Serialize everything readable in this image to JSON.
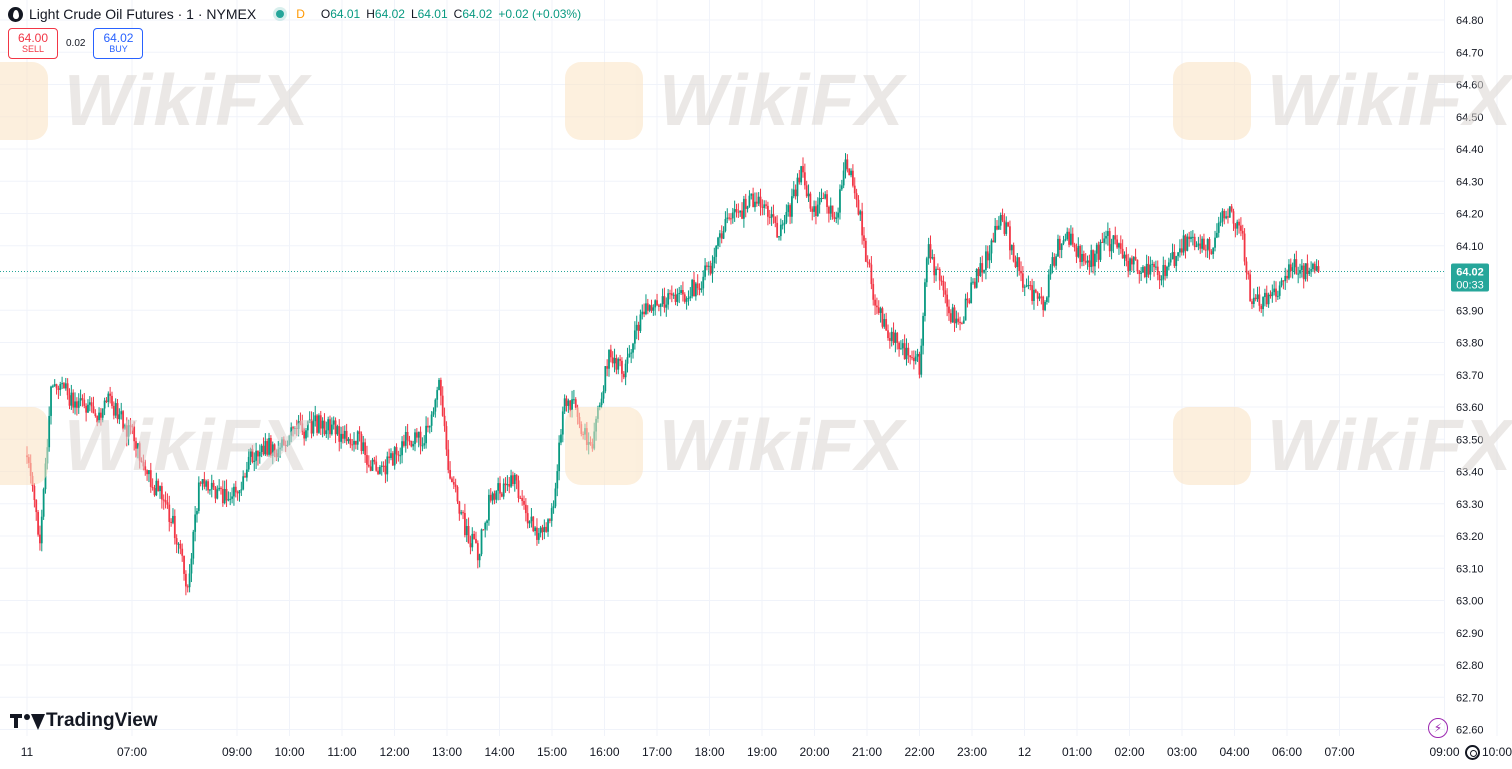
{
  "header": {
    "symbol_title": "Light Crude Oil Futures · 1 · NYMEX",
    "resolution_badge": "D",
    "ohlc": {
      "o_label": "O",
      "o_value": "64.01",
      "h_label": "H",
      "h_value": "64.02",
      "l_label": "L",
      "l_value": "64.01",
      "c_label": "C",
      "c_value": "64.02",
      "change": "+0.02 (+0.03%)"
    }
  },
  "trade": {
    "sell_price": "64.00",
    "sell_label": "SELL",
    "spread": "0.02",
    "buy_price": "64.02",
    "buy_label": "BUY"
  },
  "price_label": {
    "price": "64.02",
    "countdown": "00:33"
  },
  "brand": "TradingView",
  "watermark": "WikiFX",
  "colors": {
    "up": "#089981",
    "down": "#f23645",
    "price_line": "#26a69a",
    "grid": "#f0f3fa",
    "text": "#131722",
    "accent_orange": "#ff9800",
    "bolt_purple": "#9c27b0"
  },
  "icons": [
    "symbol-logo-icon",
    "market-status-dot-icon",
    "tradingview-logo-icon",
    "lightning-bolt-icon",
    "gear-icon",
    "wikifx-logo-icon"
  ],
  "chart_data": {
    "type": "candlestick",
    "interval": "1",
    "ylim": [
      62.55,
      64.88
    ],
    "y_ticks": [
      {
        "value": 64.8,
        "label": "64.80"
      },
      {
        "value": 64.7,
        "label": "64.70"
      },
      {
        "value": 64.6,
        "label": "64.60"
      },
      {
        "value": 64.5,
        "label": "64.50"
      },
      {
        "value": 64.4,
        "label": "64.40"
      },
      {
        "value": 64.3,
        "label": "64.30"
      },
      {
        "value": 64.2,
        "label": "64.20"
      },
      {
        "value": 64.1,
        "label": "64.10"
      },
      {
        "value": 64.0,
        "label": "64.00"
      },
      {
        "value": 63.9,
        "label": "63.90"
      },
      {
        "value": 63.8,
        "label": "63.80"
      },
      {
        "value": 63.7,
        "label": "63.70"
      },
      {
        "value": 63.6,
        "label": "63.60"
      },
      {
        "value": 63.5,
        "label": "63.50"
      },
      {
        "value": 63.4,
        "label": "63.40"
      },
      {
        "value": 63.3,
        "label": "63.30"
      },
      {
        "value": 63.2,
        "label": "63.20"
      },
      {
        "value": 63.1,
        "label": "63.10"
      },
      {
        "value": 63.0,
        "label": "63.00"
      },
      {
        "value": 62.9,
        "label": "62.90"
      },
      {
        "value": 62.8,
        "label": "62.80"
      },
      {
        "value": 62.7,
        "label": "62.70"
      },
      {
        "value": 62.6,
        "label": "62.60"
      }
    ],
    "x_ticks": [
      "11",
      "07:00",
      "09:00",
      "10:00",
      "11:00",
      "12:00",
      "13:00",
      "14:00",
      "15:00",
      "16:00",
      "17:00",
      "18:00",
      "19:00",
      "20:00",
      "21:00",
      "22:00",
      "23:00",
      "12",
      "01:00",
      "02:00",
      "03:00",
      "04:00",
      "06:00",
      "07:00",
      "09:00",
      "10:00"
    ],
    "x_tick_positions": [
      0,
      2,
      4,
      5,
      6,
      7,
      8,
      9,
      10,
      11,
      12,
      13,
      14,
      15,
      16,
      17,
      18,
      19,
      20,
      21,
      22,
      23,
      24,
      25,
      27,
      28
    ],
    "last_price": 64.02,
    "path": [
      [
        0,
        63.45
      ],
      [
        0.15,
        63.3
      ],
      [
        0.25,
        63.18
      ],
      [
        0.45,
        63.65
      ],
      [
        0.65,
        63.68
      ],
      [
        0.85,
        63.62
      ],
      [
        1.1,
        63.61
      ],
      [
        1.35,
        63.58
      ],
      [
        1.55,
        63.62
      ],
      [
        1.75,
        63.57
      ],
      [
        2.05,
        63.5
      ],
      [
        2.3,
        63.38
      ],
      [
        2.6,
        63.32
      ],
      [
        2.85,
        63.2
      ],
      [
        3.05,
        63.04
      ],
      [
        3.3,
        63.38
      ],
      [
        3.55,
        63.35
      ],
      [
        3.85,
        63.31
      ],
      [
        4.1,
        63.37
      ],
      [
        4.3,
        63.46
      ],
      [
        4.55,
        63.48
      ],
      [
        4.8,
        63.47
      ],
      [
        5.05,
        63.53
      ],
      [
        5.3,
        63.53
      ],
      [
        5.55,
        63.55
      ],
      [
        5.8,
        63.54
      ],
      [
        6.05,
        63.5
      ],
      [
        6.3,
        63.5
      ],
      [
        6.5,
        63.43
      ],
      [
        6.75,
        63.4
      ],
      [
        7.0,
        63.45
      ],
      [
        7.25,
        63.5
      ],
      [
        7.5,
        63.5
      ],
      [
        7.7,
        63.55
      ],
      [
        7.85,
        63.67
      ],
      [
        8.0,
        63.45
      ],
      [
        8.2,
        63.3
      ],
      [
        8.4,
        63.2
      ],
      [
        8.6,
        63.15
      ],
      [
        8.8,
        63.3
      ],
      [
        9.05,
        63.35
      ],
      [
        9.25,
        63.38
      ],
      [
        9.45,
        63.3
      ],
      [
        9.65,
        63.22
      ],
      [
        9.85,
        63.2
      ],
      [
        10.05,
        63.3
      ],
      [
        10.2,
        63.6
      ],
      [
        10.35,
        63.62
      ],
      [
        10.55,
        63.55
      ],
      [
        10.75,
        63.45
      ],
      [
        10.9,
        63.6
      ],
      [
        11.1,
        63.78
      ],
      [
        11.35,
        63.7
      ],
      [
        11.55,
        63.8
      ],
      [
        11.75,
        63.9
      ],
      [
        12.0,
        63.93
      ],
      [
        12.25,
        63.94
      ],
      [
        12.55,
        63.95
      ],
      [
        12.8,
        63.98
      ],
      [
        13.05,
        64.05
      ],
      [
        13.3,
        64.17
      ],
      [
        13.55,
        64.2
      ],
      [
        13.85,
        64.25
      ],
      [
        14.05,
        64.2
      ],
      [
        14.3,
        64.15
      ],
      [
        14.55,
        64.22
      ],
      [
        14.75,
        64.35
      ],
      [
        14.95,
        64.2
      ],
      [
        15.2,
        64.25
      ],
      [
        15.4,
        64.15
      ],
      [
        15.6,
        64.38
      ],
      [
        15.8,
        64.25
      ],
      [
        16.0,
        64.05
      ],
      [
        16.2,
        63.9
      ],
      [
        16.4,
        63.83
      ],
      [
        16.6,
        63.8
      ],
      [
        16.8,
        63.76
      ],
      [
        17.0,
        63.73
      ],
      [
        17.15,
        64.1
      ],
      [
        17.35,
        64.0
      ],
      [
        17.55,
        63.9
      ],
      [
        17.75,
        63.85
      ],
      [
        17.95,
        63.95
      ],
      [
        18.15,
        64.02
      ],
      [
        18.35,
        64.1
      ],
      [
        18.55,
        64.2
      ],
      [
        18.75,
        64.1
      ],
      [
        18.95,
        64.0
      ],
      [
        19.15,
        63.95
      ],
      [
        19.35,
        63.92
      ],
      [
        19.55,
        64.05
      ],
      [
        19.75,
        64.15
      ],
      [
        19.95,
        64.1
      ],
      [
        20.15,
        64.05
      ],
      [
        20.35,
        64.07
      ],
      [
        20.55,
        64.12
      ],
      [
        20.75,
        64.1
      ],
      [
        20.95,
        64.05
      ],
      [
        21.15,
        64.04
      ],
      [
        21.35,
        64.02
      ],
      [
        21.55,
        64.02
      ],
      [
        21.75,
        64.03
      ],
      [
        21.95,
        64.1
      ],
      [
        22.15,
        64.12
      ],
      [
        22.35,
        64.12
      ],
      [
        22.55,
        64.1
      ],
      [
        22.75,
        64.18
      ],
      [
        22.95,
        64.2
      ],
      [
        23.15,
        64.12
      ],
      [
        23.3,
        63.95
      ],
      [
        23.5,
        63.93
      ],
      [
        23.7,
        63.95
      ],
      [
        23.9,
        63.97
      ],
      [
        24.1,
        64.05
      ],
      [
        24.3,
        64.02
      ],
      [
        24.6,
        64.02
      ]
    ]
  }
}
